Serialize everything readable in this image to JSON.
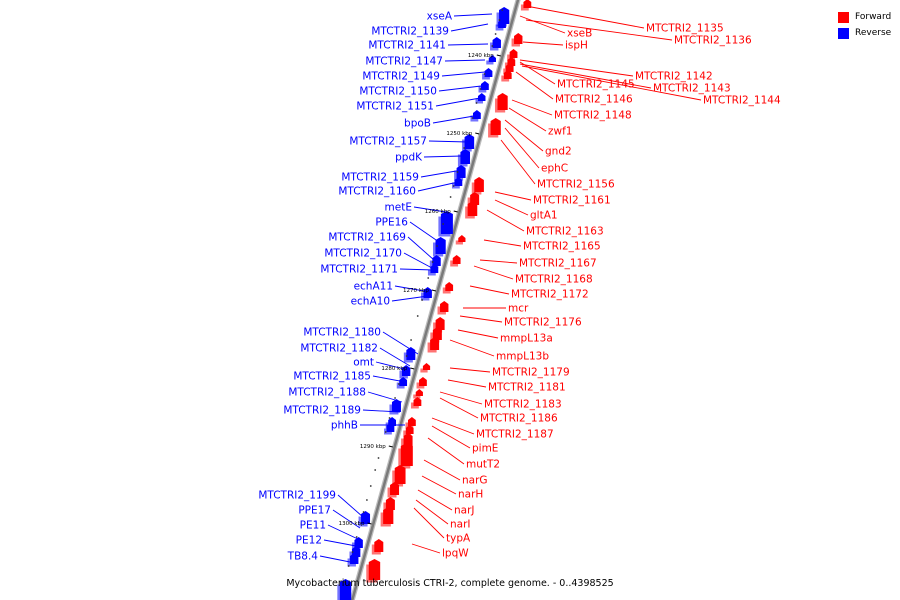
{
  "caption": "Mycobacterium tuberculosis CTRI-2, complete genome. - 0..4398525",
  "legend": [
    {
      "label": "Forward",
      "color": "#ff0000"
    },
    {
      "label": "Reverse",
      "color": "#0000ff"
    }
  ],
  "colors": {
    "forward": "#ff0000",
    "reverse": "#0000ff",
    "backbone": "#7a7a7a",
    "tick_mark": "#000000"
  },
  "scale_ticks": [
    "1240 kbp",
    "1250 kbp",
    "1260 kbp",
    "1270 kbp",
    "1280 kbp",
    "1290 kbp",
    "1300 kbp"
  ],
  "reverse_genes": [
    "xseA",
    "MTCTRI2_1139",
    "MTCTRI2_1141",
    "MTCTRI2_1147",
    "MTCTRI2_1149",
    "MTCTRI2_1150",
    "MTCTRI2_1151",
    "bpoB",
    "MTCTRI2_1157",
    "ppdK",
    "MTCTRI2_1159",
    "MTCTRI2_1160",
    "metE",
    "PPE16",
    "MTCTRI2_1169",
    "MTCTRI2_1170",
    "MTCTRI2_1171",
    "echA11",
    "echA10",
    "MTCTRI2_1180",
    "MTCTRI2_1182",
    "omt",
    "MTCTRI2_1185",
    "MTCTRI2_1188",
    "MTCTRI2_1189",
    "phhB",
    "MTCTRI2_1199",
    "PPE17",
    "PE11",
    "PE12",
    "TB8.4"
  ],
  "forward_genes": [
    "MTCTRI2_1135",
    "xseB",
    "MTCTRI2_1136",
    "ispH",
    "MTCTRI2_1142",
    "MTCTRI2_1145",
    "MTCTRI2_1143",
    "MTCTRI2_1146",
    "MTCTRI2_1144",
    "MTCTRI2_1148",
    "zwf1",
    "gnd2",
    "ephC",
    "MTCTRI2_1156",
    "MTCTRI2_1161",
    "gltA1",
    "MTCTRI2_1163",
    "MTCTRI2_1165",
    "MTCTRI2_1167",
    "MTCTRI2_1168",
    "MTCTRI2_1172",
    "mcr",
    "MTCTRI2_1176",
    "mmpL13a",
    "mmpL13b",
    "MTCTRI2_1179",
    "MTCTRI2_1181",
    "MTCTRI2_1183",
    "MTCTRI2_1186",
    "MTCTRI2_1187",
    "pimE",
    "mutT2",
    "narG",
    "narH",
    "narJ",
    "narI",
    "typA",
    "lpqW"
  ]
}
